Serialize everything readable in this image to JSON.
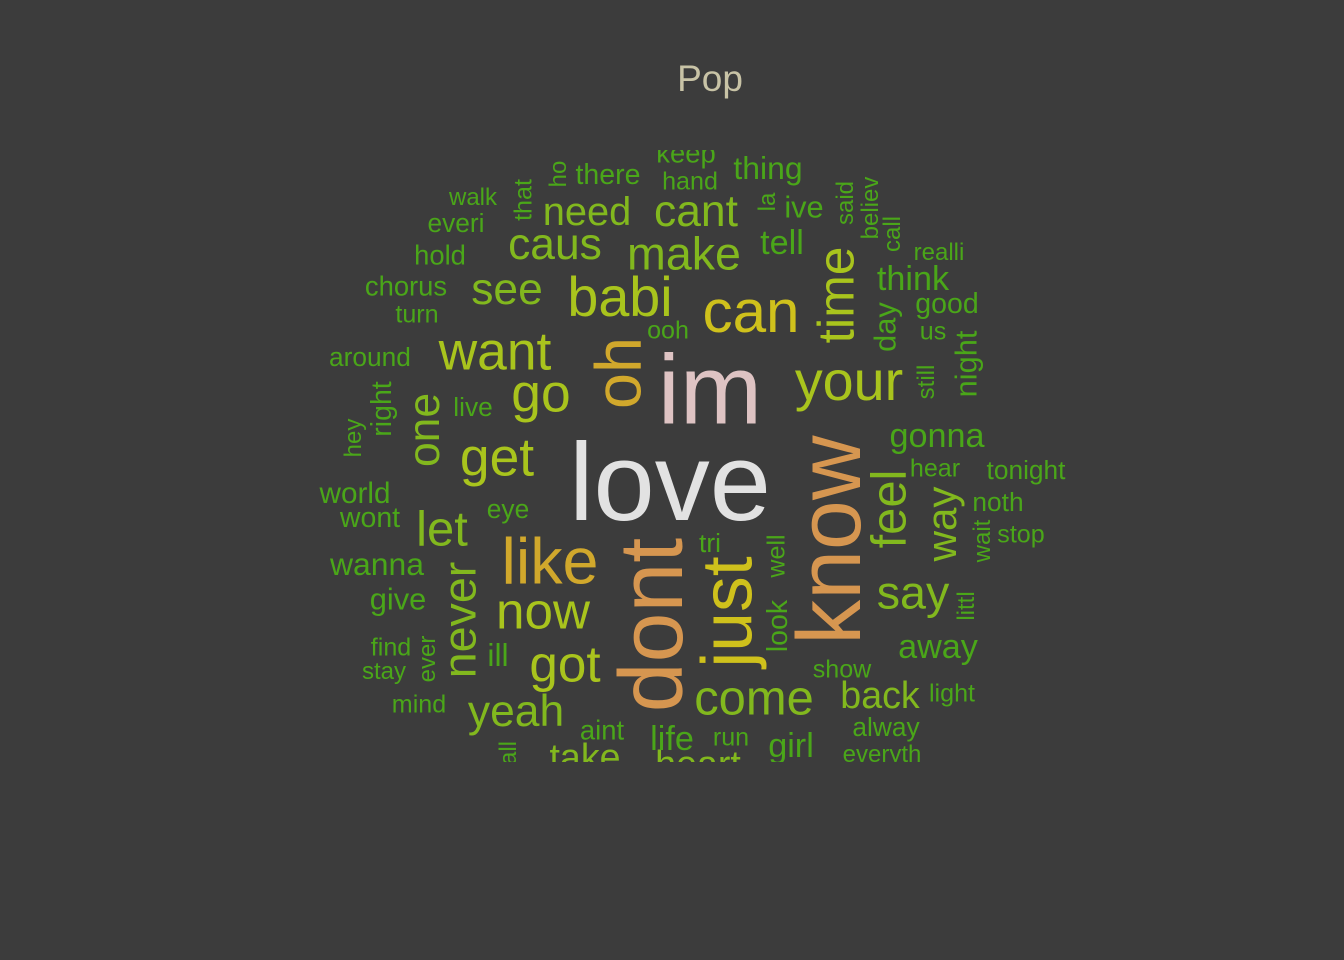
{
  "chart_data": {
    "type": "wordcloud",
    "title": "Pop",
    "palette": {
      "bg": "#3c3c3c",
      "title": "#c8c3a6",
      "green": "#4aa619",
      "lime": "#82b81e",
      "yellowgreen": "#a9c41d",
      "gold": "#cfc11c",
      "amber": "#d1a82c",
      "orange": "#d69650",
      "pink": "#dec3c3",
      "white": "#e2e2e2"
    },
    "words": [
      {
        "text": "love",
        "weight": 100,
        "color": "white"
      },
      {
        "text": "im",
        "weight": 90,
        "color": "pink"
      },
      {
        "text": "know",
        "weight": 82,
        "color": "orange"
      },
      {
        "text": "dont",
        "weight": 82,
        "color": "orange"
      },
      {
        "text": "just",
        "weight": 66,
        "color": "gold"
      },
      {
        "text": "oh",
        "weight": 60,
        "color": "amber"
      },
      {
        "text": "like",
        "weight": 60,
        "color": "amber"
      },
      {
        "text": "can",
        "weight": 56,
        "color": "gold"
      },
      {
        "text": "your",
        "weight": 52,
        "color": "yellowgreen"
      },
      {
        "text": "babi",
        "weight": 52,
        "color": "yellowgreen"
      },
      {
        "text": "want",
        "weight": 50,
        "color": "yellowgreen"
      },
      {
        "text": "go",
        "weight": 50,
        "color": "yellowgreen"
      },
      {
        "text": "get",
        "weight": 50,
        "color": "yellowgreen"
      },
      {
        "text": "now",
        "weight": 48,
        "color": "yellowgreen"
      },
      {
        "text": "got",
        "weight": 48,
        "color": "yellowgreen"
      },
      {
        "text": "time",
        "weight": 48,
        "color": "yellowgreen"
      },
      {
        "text": "feel",
        "weight": 46,
        "color": "lime"
      },
      {
        "text": "let",
        "weight": 46,
        "color": "lime"
      },
      {
        "text": "come",
        "weight": 46,
        "color": "lime"
      },
      {
        "text": "make",
        "weight": 44,
        "color": "lime"
      },
      {
        "text": "never",
        "weight": 44,
        "color": "lime"
      },
      {
        "text": "say",
        "weight": 44,
        "color": "lime"
      },
      {
        "text": "see",
        "weight": 42,
        "color": "lime"
      },
      {
        "text": "caus",
        "weight": 42,
        "color": "lime"
      },
      {
        "text": "cant",
        "weight": 42,
        "color": "lime"
      },
      {
        "text": "yeah",
        "weight": 42,
        "color": "lime"
      },
      {
        "text": "one",
        "weight": 42,
        "color": "lime"
      },
      {
        "text": "way",
        "weight": 40,
        "color": "lime"
      },
      {
        "text": "need",
        "weight": 38,
        "color": "lime"
      },
      {
        "text": "back",
        "weight": 36,
        "color": "lime"
      },
      {
        "text": "take",
        "weight": 36,
        "color": "lime"
      },
      {
        "text": "heart",
        "weight": 36,
        "color": "lime"
      },
      {
        "text": "gonna",
        "weight": 33,
        "color": "green"
      },
      {
        "text": "think",
        "weight": 33,
        "color": "green"
      },
      {
        "text": "tell",
        "weight": 33,
        "color": "green"
      },
      {
        "text": "girl",
        "weight": 33,
        "color": "green"
      },
      {
        "text": "life",
        "weight": 33,
        "color": "green"
      },
      {
        "text": "away",
        "weight": 33,
        "color": "green"
      },
      {
        "text": "thing",
        "weight": 31,
        "color": "green"
      },
      {
        "text": "ill",
        "weight": 31,
        "color": "green"
      },
      {
        "text": "wanna",
        "weight": 31,
        "color": "green"
      },
      {
        "text": "night",
        "weight": 30,
        "color": "green"
      },
      {
        "text": "day",
        "weight": 30,
        "color": "green"
      },
      {
        "text": "give",
        "weight": 30,
        "color": "green"
      },
      {
        "text": "ive",
        "weight": 30,
        "color": "green"
      },
      {
        "text": "world",
        "weight": 29,
        "color": "green"
      },
      {
        "text": "right",
        "weight": 28,
        "color": "green"
      },
      {
        "text": "good",
        "weight": 28,
        "color": "green"
      },
      {
        "text": "there",
        "weight": 28,
        "color": "green"
      },
      {
        "text": "look",
        "weight": 28,
        "color": "green"
      },
      {
        "text": "wont",
        "weight": 28,
        "color": "green"
      },
      {
        "text": "chorus",
        "weight": 27,
        "color": "green"
      },
      {
        "text": "keep",
        "weight": 27,
        "color": "green"
      },
      {
        "text": "aint",
        "weight": 27,
        "color": "green"
      },
      {
        "text": "hold",
        "weight": 27,
        "color": "green"
      },
      {
        "text": "around",
        "weight": 26,
        "color": "green"
      },
      {
        "text": "tonight",
        "weight": 26,
        "color": "green"
      },
      {
        "text": "live",
        "weight": 26,
        "color": "green"
      },
      {
        "text": "noth",
        "weight": 26,
        "color": "green"
      },
      {
        "text": "everi",
        "weight": 26,
        "color": "green"
      },
      {
        "text": "eye",
        "weight": 26,
        "color": "green"
      },
      {
        "text": "tri",
        "weight": 26,
        "color": "green"
      },
      {
        "text": "alway",
        "weight": 26,
        "color": "green"
      },
      {
        "text": "find",
        "weight": 25,
        "color": "green"
      },
      {
        "text": "stop",
        "weight": 25,
        "color": "green"
      },
      {
        "text": "light",
        "weight": 25,
        "color": "green"
      },
      {
        "text": "turn",
        "weight": 25,
        "color": "green"
      },
      {
        "text": "hand",
        "weight": 25,
        "color": "green"
      },
      {
        "text": "mind",
        "weight": 25,
        "color": "green"
      },
      {
        "text": "show",
        "weight": 25,
        "color": "green"
      },
      {
        "text": "run",
        "weight": 25,
        "color": "green"
      },
      {
        "text": "well",
        "weight": 25,
        "color": "green"
      },
      {
        "text": "that",
        "weight": 25,
        "color": "green"
      },
      {
        "text": "ooh",
        "weight": 25,
        "color": "green"
      },
      {
        "text": "hear",
        "weight": 25,
        "color": "green"
      },
      {
        "text": "us",
        "weight": 25,
        "color": "green"
      },
      {
        "text": "still",
        "weight": 24,
        "color": "green"
      },
      {
        "text": "stay",
        "weight": 24,
        "color": "green"
      },
      {
        "text": "walk",
        "weight": 24,
        "color": "green"
      },
      {
        "text": "realli",
        "weight": 24,
        "color": "green"
      },
      {
        "text": "everyth",
        "weight": 24,
        "color": "green"
      },
      {
        "text": "littl",
        "weight": 24,
        "color": "green"
      },
      {
        "text": "ever",
        "weight": 24,
        "color": "green"
      },
      {
        "text": "hey",
        "weight": 24,
        "color": "green"
      },
      {
        "text": "wait",
        "weight": 24,
        "color": "green"
      },
      {
        "text": "said",
        "weight": 24,
        "color": "green"
      },
      {
        "text": "believ",
        "weight": 24,
        "color": "green"
      },
      {
        "text": "call",
        "weight": 24,
        "color": "green"
      },
      {
        "text": "la",
        "weight": 24,
        "color": "green"
      },
      {
        "text": "ho",
        "weight": 24,
        "color": "green"
      },
      {
        "text": "all",
        "weight": 24,
        "color": "green"
      }
    ]
  }
}
